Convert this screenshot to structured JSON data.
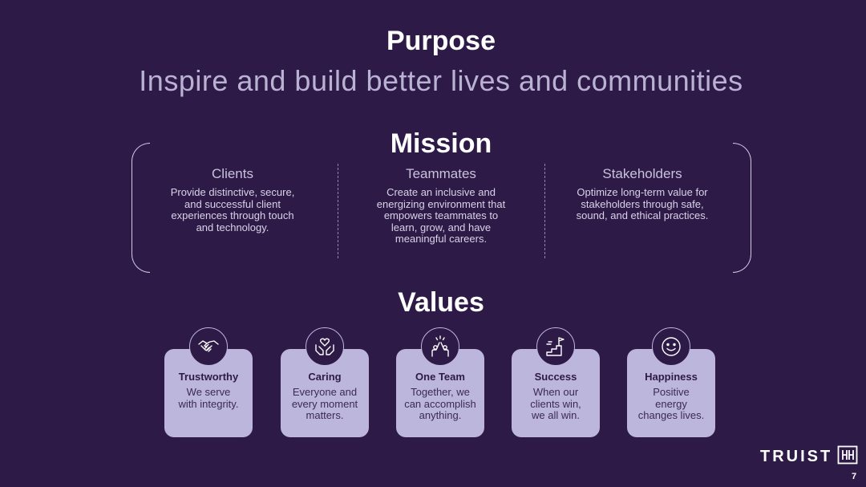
{
  "purpose": {
    "title": "Purpose",
    "statement": "Inspire and build better lives and communities"
  },
  "mission": {
    "title": "Mission",
    "columns": [
      {
        "heading": "Clients",
        "lines": [
          "Provide distinctive, secure,",
          "and successful client",
          "experiences through touch",
          "and technology."
        ]
      },
      {
        "heading": "Teammates",
        "lines": [
          "Create an inclusive and",
          "energizing environment that",
          "empowers teammates to",
          "learn, grow, and have",
          "meaningful careers."
        ]
      },
      {
        "heading": "Stakeholders",
        "lines": [
          "Optimize long-term value for",
          "stakeholders through safe,",
          "sound, and ethical practices."
        ]
      }
    ]
  },
  "values": {
    "title": "Values",
    "cards": [
      {
        "title": "Trustworthy",
        "lines": [
          "We serve",
          "with integrity."
        ],
        "icon": "handshake-icon"
      },
      {
        "title": "Caring",
        "lines": [
          "Everyone and",
          "every moment",
          "matters."
        ],
        "icon": "hands-heart-icon"
      },
      {
        "title": "One Team",
        "lines": [
          "Together, we",
          "can accomplish",
          "anything."
        ],
        "icon": "high-five-icon"
      },
      {
        "title": "Success",
        "lines": [
          "When our",
          "clients win,",
          "we all win."
        ],
        "icon": "stairs-flag-icon"
      },
      {
        "title": "Happiness",
        "lines": [
          "Positive",
          "energy",
          "changes lives."
        ],
        "icon": "smiley-icon"
      }
    ]
  },
  "brand": {
    "name": "TRUIST",
    "mark": "truist-logo-mark"
  },
  "page": {
    "number": "7"
  },
  "colors": {
    "background": "#2e1a47",
    "card": "#bdb6dc",
    "subtitle": "#b9b2d3"
  }
}
